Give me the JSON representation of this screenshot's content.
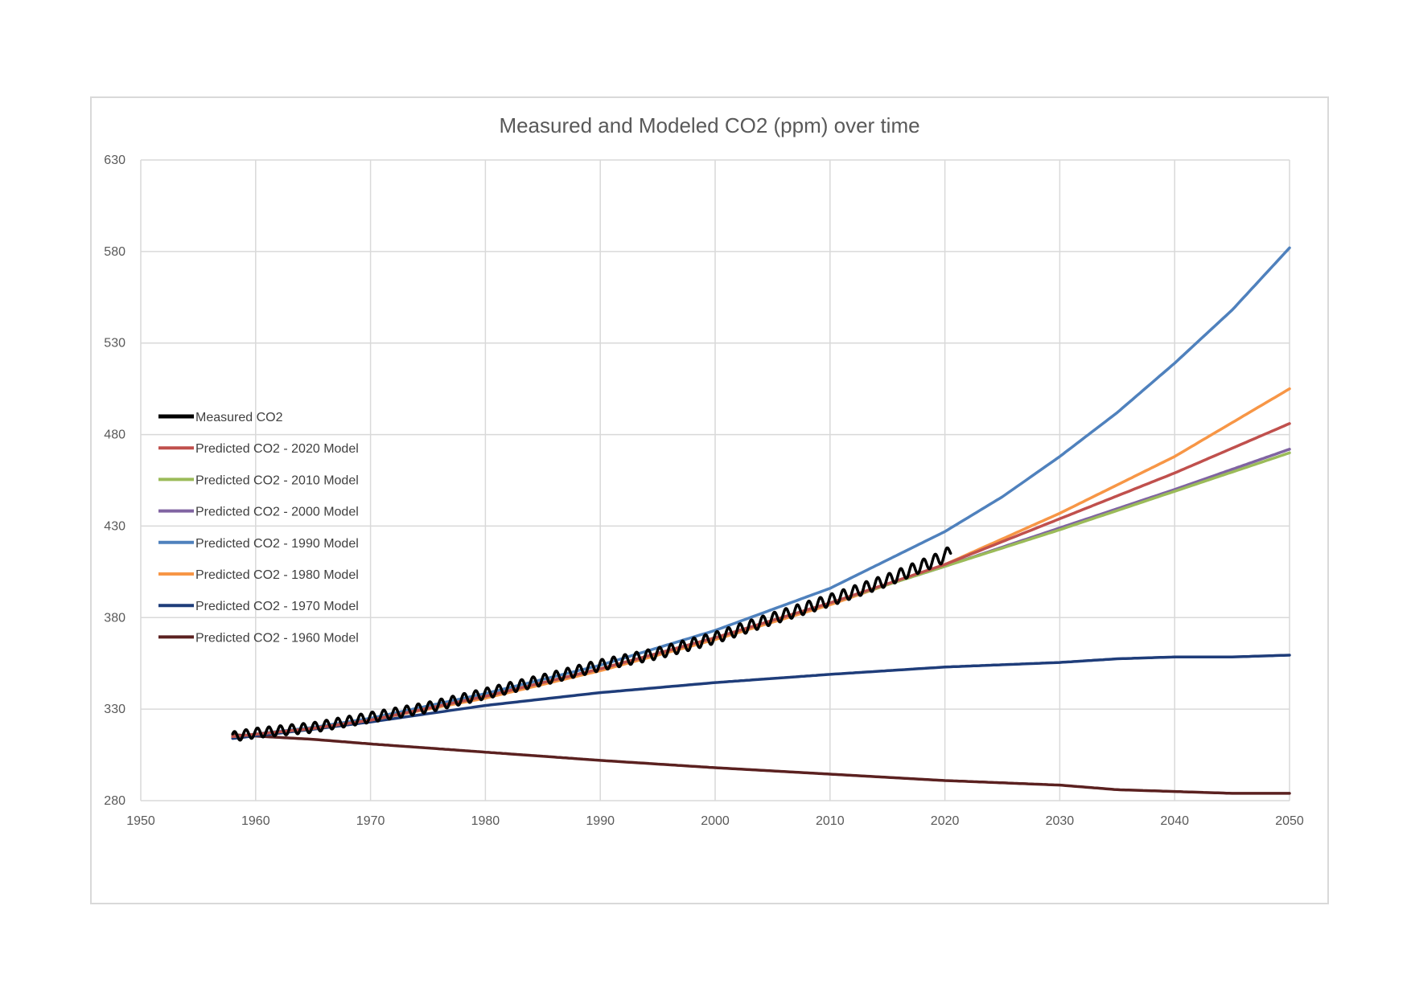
{
  "chart_data": {
    "type": "line",
    "title": "Measured and Modeled CO2 (ppm) over time",
    "xlabel": "",
    "ylabel": "",
    "xlim": [
      1950,
      2050
    ],
    "ylim": [
      280,
      630
    ],
    "x_ticks": [
      1950,
      1960,
      1970,
      1980,
      1990,
      2000,
      2010,
      2020,
      2030,
      2040,
      2050
    ],
    "y_ticks": [
      280,
      330,
      380,
      430,
      480,
      530,
      580,
      630
    ],
    "grid": true,
    "legend_position": "left",
    "series": [
      {
        "name": "Measured CO2",
        "color": "#000000",
        "style": "seasonal",
        "x": [
          1958,
          1960,
          1965,
          1970,
          1975,
          1980,
          1985,
          1990,
          1995,
          2000,
          2005,
          2010,
          2015,
          2020,
          2020.5
        ],
        "values": [
          315,
          317,
          320,
          325.5,
          331,
          338.5,
          346,
          354,
          360.5,
          369,
          379.5,
          389.5,
          400.5,
          413.5,
          417
        ]
      },
      {
        "name": "Predicted CO2 - 2020 Model",
        "color": "#c0504d",
        "x": [
          1958,
          1965,
          1970,
          1980,
          1990,
          2000,
          2010,
          2020,
          2030,
          2040,
          2050
        ],
        "values": [
          315,
          319.5,
          324,
          337,
          352,
          369,
          388,
          409,
          434,
          459,
          486
        ]
      },
      {
        "name": "Predicted CO2 - 2010 Model",
        "color": "#9bbb59",
        "x": [
          1958,
          1965,
          1970,
          1980,
          1990,
          2000,
          2010,
          2020,
          2030,
          2040,
          2050
        ],
        "values": [
          315,
          319.5,
          324,
          337,
          352,
          369,
          388,
          408,
          428,
          449,
          470
        ]
      },
      {
        "name": "Predicted CO2 - 2000 Model",
        "color": "#8064a2",
        "x": [
          1958,
          1965,
          1970,
          1980,
          1990,
          2000,
          2010,
          2020,
          2030,
          2040,
          2050
        ],
        "values": [
          315,
          319.5,
          324,
          337,
          352,
          369,
          388,
          408,
          429,
          450,
          472
        ]
      },
      {
        "name": "Predicted CO2 - 1990 Model",
        "color": "#4f81bd",
        "x": [
          1958,
          1965,
          1970,
          1980,
          1990,
          2000,
          2010,
          2020,
          2025,
          2030,
          2035,
          2040,
          2045,
          2050
        ],
        "values": [
          315,
          320,
          325,
          338.5,
          354,
          373,
          396,
          427,
          446,
          468,
          492,
          519,
          548,
          582
        ]
      },
      {
        "name": "Predicted CO2 - 1980 Model",
        "color": "#f79646",
        "x": [
          1958,
          1965,
          1970,
          1980,
          1990,
          2000,
          2010,
          2020,
          2030,
          2040,
          2050
        ],
        "values": [
          315,
          319.5,
          324,
          336,
          351,
          368,
          387,
          409,
          437,
          468,
          505
        ]
      },
      {
        "name": "Predicted CO2 - 1970 Model",
        "color": "#1f3d7a",
        "x": [
          1958,
          1965,
          1970,
          1980,
          1990,
          2000,
          2010,
          2020,
          2030,
          2035,
          2040,
          2045,
          2050
        ],
        "values": [
          314,
          319,
          323,
          332,
          339,
          344.5,
          349,
          353,
          355.5,
          357.5,
          358.5,
          358.5,
          359.5
        ]
      },
      {
        "name": "Predicted CO2 - 1960 Model",
        "color": "#5b2120",
        "x": [
          1958,
          1965,
          1970,
          1980,
          1990,
          2000,
          2010,
          2020,
          2030,
          2035,
          2040,
          2045,
          2050
        ],
        "values": [
          316,
          313.5,
          311,
          306.5,
          302,
          298,
          294.5,
          291,
          288.5,
          286,
          285,
          284,
          284
        ]
      }
    ]
  }
}
